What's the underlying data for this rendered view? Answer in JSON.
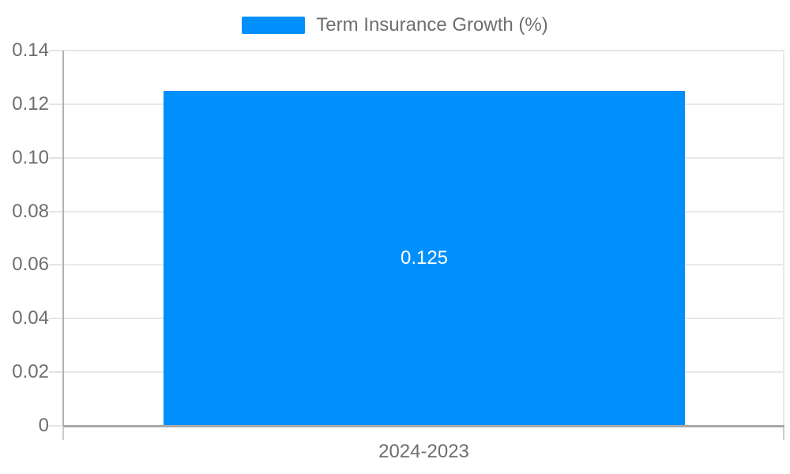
{
  "chart_data": {
    "type": "bar",
    "title": "",
    "legend": "Term Insurance Growth (%)",
    "legend_position": "top",
    "categories": [
      "2024-2023"
    ],
    "series": [
      {
        "name": "Term Insurance Growth (%)",
        "values": [
          0.125
        ]
      }
    ],
    "value_labels": [
      "0.125"
    ],
    "xlabel": "",
    "ylabel": "",
    "ylim": [
      0,
      0.14
    ],
    "ytick_labels": [
      "0",
      "0.02",
      "0.04",
      "0.06",
      "0.08",
      "0.10",
      "0.12",
      "0.14"
    ],
    "grid": "horizontal gridlines only",
    "bar_color": "#008FFB",
    "colors": {
      "bar": "#008FFB",
      "bar_label_text": "#ffffff",
      "axis_text": "#6e6e6e",
      "gridline": "#e8e8e8",
      "yaxis_line": "#b2b2b2",
      "xaxis_line": "#a9a9a9",
      "background": "#ffffff"
    }
  }
}
